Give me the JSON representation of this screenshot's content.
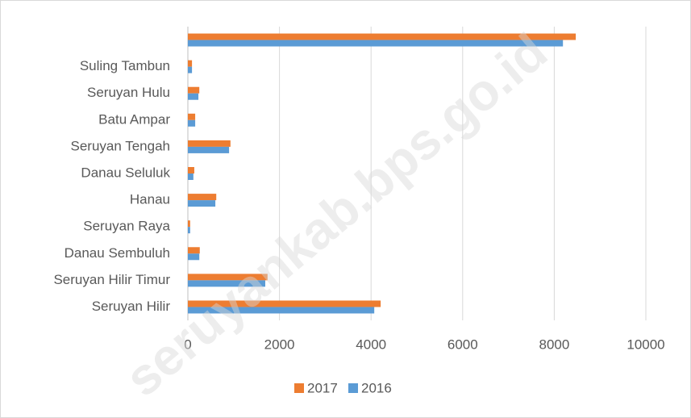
{
  "chart_data": {
    "type": "hbar",
    "watermark": "seruyankab.bps.go.id",
    "categories": [
      "Seruyan Hilir",
      "Seruyan Hilir Timur",
      "Danau Sembuluh",
      "Seruyan Raya",
      "Hanau",
      "Danau Seluluk",
      "Seruyan Tengah",
      "Batu Ampar",
      "Seruyan Hulu",
      "Suling Tambun",
      null
    ],
    "series": [
      {
        "name": "2017",
        "color": "#ed7d31",
        "values": [
          4210,
          1740,
          260,
          50,
          620,
          140,
          930,
          160,
          250,
          90,
          8470
        ]
      },
      {
        "name": "2016",
        "color": "#5b9bd5",
        "values": [
          4070,
          1690,
          250,
          50,
          600,
          120,
          900,
          160,
          230,
          90,
          8190
        ]
      }
    ],
    "xlim": [
      0,
      10000
    ],
    "xticks": [
      0,
      2000,
      4000,
      6000,
      8000,
      10000
    ],
    "grid": true,
    "legend": "bottom"
  }
}
